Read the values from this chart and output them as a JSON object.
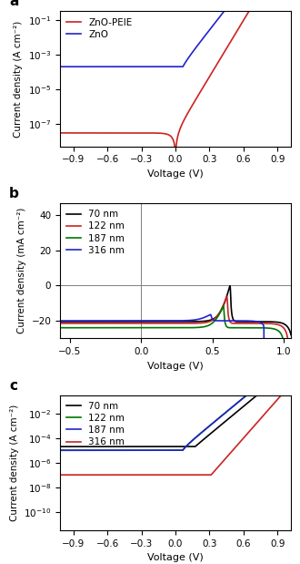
{
  "panel_a": {
    "title_label": "a",
    "ylabel": "Current density (A cm⁻²)",
    "xlabel": "Voltage (V)",
    "ylim_log": [
      -8.3,
      -0.5
    ],
    "xlim": [
      -1.02,
      1.02
    ],
    "xticks": [
      -0.9,
      -0.6,
      -0.3,
      0.0,
      0.3,
      0.6,
      0.9
    ],
    "lines": [
      {
        "label": "ZnO-PEIE",
        "color": "#cc2222",
        "I0": 3e-08,
        "n": 1.55,
        "Imin": 3e-09
      },
      {
        "label": "ZnO",
        "color": "#2222cc",
        "I0": 8e-05,
        "n": 2.0,
        "Imin": 0.0002
      }
    ]
  },
  "panel_b": {
    "title_label": "b",
    "ylabel": "Current density (mA cm⁻²)",
    "xlabel": "Voltage (V)",
    "ylim": [
      -30,
      47
    ],
    "xlim": [
      -0.57,
      1.05
    ],
    "xticks": [
      -0.5,
      0.0,
      0.5,
      1.0
    ],
    "yticks": [
      -20,
      0,
      20,
      40
    ],
    "lines": [
      {
        "label": "70 nm",
        "color": "#000000",
        "Jsc": 20.5,
        "J0": 2e-10,
        "n": 1.3,
        "Rs": 1.5,
        "Rsh": 5000
      },
      {
        "label": "122 nm",
        "color": "#cc2222",
        "Jsc": 21.5,
        "J0": 2e-10,
        "n": 1.3,
        "Rs": 2.0,
        "Rsh": 5000
      },
      {
        "label": "187 nm",
        "color": "#007700",
        "Jsc": 24.0,
        "J0": 2e-10,
        "n": 1.3,
        "Rs": 2.5,
        "Rsh": 5000
      },
      {
        "label": "316 nm",
        "color": "#2222cc",
        "Jsc": 20.0,
        "J0": 2e-10,
        "n": 1.5,
        "Rs": 10.0,
        "Rsh": 1000
      }
    ]
  },
  "panel_c": {
    "title_label": "c",
    "ylabel": "Current density (A cm⁻²)",
    "xlabel": "Voltage (V)",
    "ylim_log": [
      -11.5,
      -0.5
    ],
    "xlim": [
      -1.02,
      1.02
    ],
    "xticks": [
      -0.9,
      -0.6,
      -0.3,
      0.0,
      0.3,
      0.6,
      0.9
    ],
    "lines": [
      {
        "label": "70 nm",
        "color": "#000000",
        "I0": 1e-06,
        "n": 2.2,
        "Imin": 2e-05
      },
      {
        "label": "122 nm",
        "color": "#007700",
        "I0": 5e-06,
        "n": 2.2,
        "Imin": 1e-05
      },
      {
        "label": "187 nm",
        "color": "#2222cc",
        "I0": 5e-06,
        "n": 2.2,
        "Imin": 1e-05
      },
      {
        "label": "316 nm",
        "color": "#cc2222",
        "I0": 5e-11,
        "n": 1.6,
        "Imin": 1e-07
      }
    ]
  }
}
